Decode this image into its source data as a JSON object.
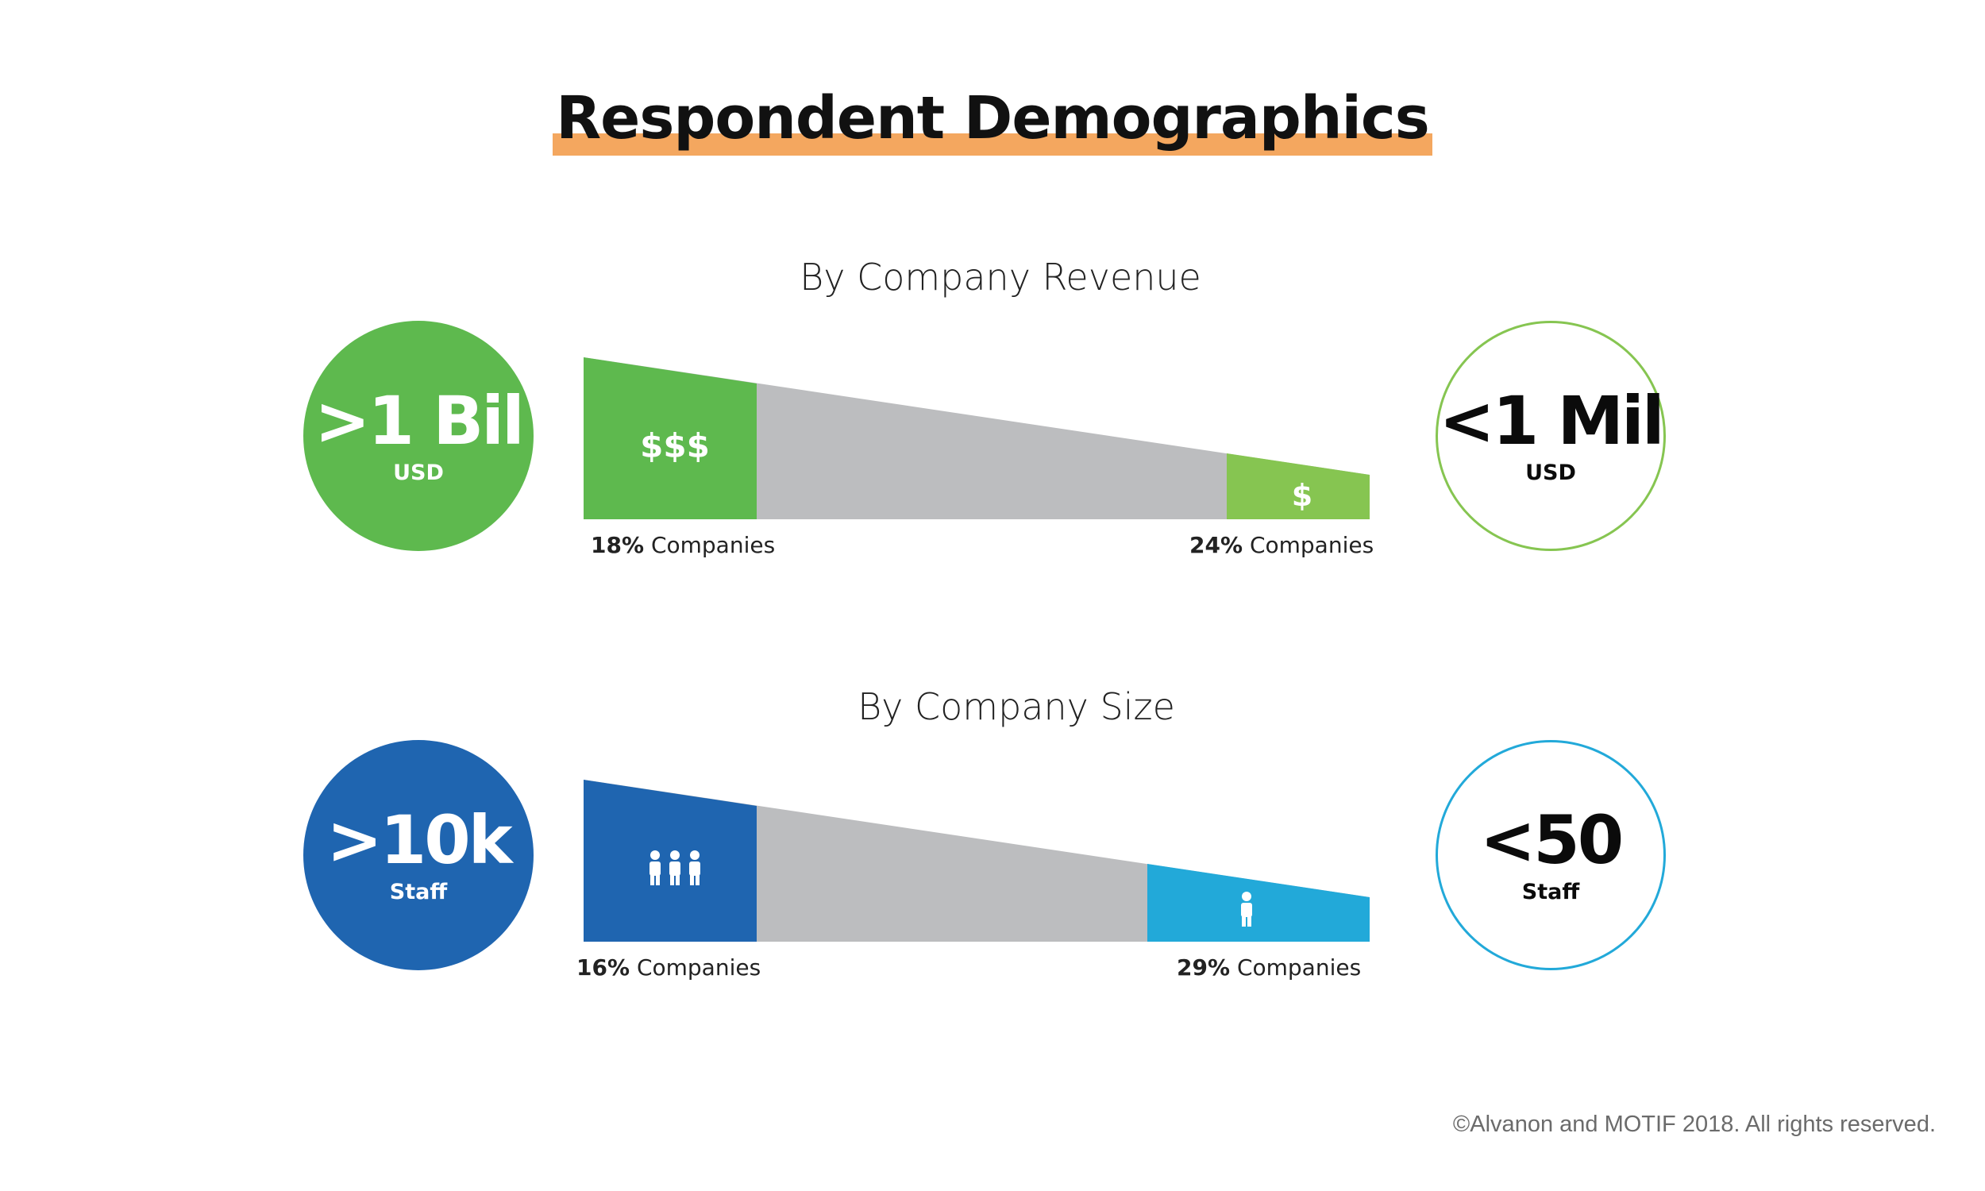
{
  "title": "Respondent Demographics",
  "copyright": "©Alvanon and MOTIF 2018. All rights reserved.",
  "colors": {
    "title_highlight": "#f4a75f",
    "middle_gray": "#bcbdbf",
    "revenue_high": "#5eb94e",
    "revenue_low": "#86c551",
    "size_high": "#1f65b0",
    "size_low": "#22a9d9"
  },
  "chart_data": [
    {
      "type": "bar",
      "title": "By Company Revenue",
      "left_category": {
        "big": ">1 Bil",
        "small": "USD",
        "percent": "18%",
        "label": "Companies",
        "value": 18,
        "icon": "dollar-triple",
        "glyph": "$$$"
      },
      "right_category": {
        "big": "<1 Mil",
        "small": "USD",
        "percent": "24%",
        "label": "Companies",
        "value": 24,
        "icon": "dollar-single",
        "glyph": "$"
      }
    },
    {
      "type": "bar",
      "title": "By Company Size",
      "left_category": {
        "big": ">10k",
        "small": "Staff",
        "percent": "16%",
        "label": "Companies",
        "value": 16,
        "icon": "people-group-icon"
      },
      "right_category": {
        "big": "<50",
        "small": "Staff",
        "percent": "29%",
        "label": "Companies",
        "value": 29,
        "icon": "person-icon"
      }
    }
  ]
}
